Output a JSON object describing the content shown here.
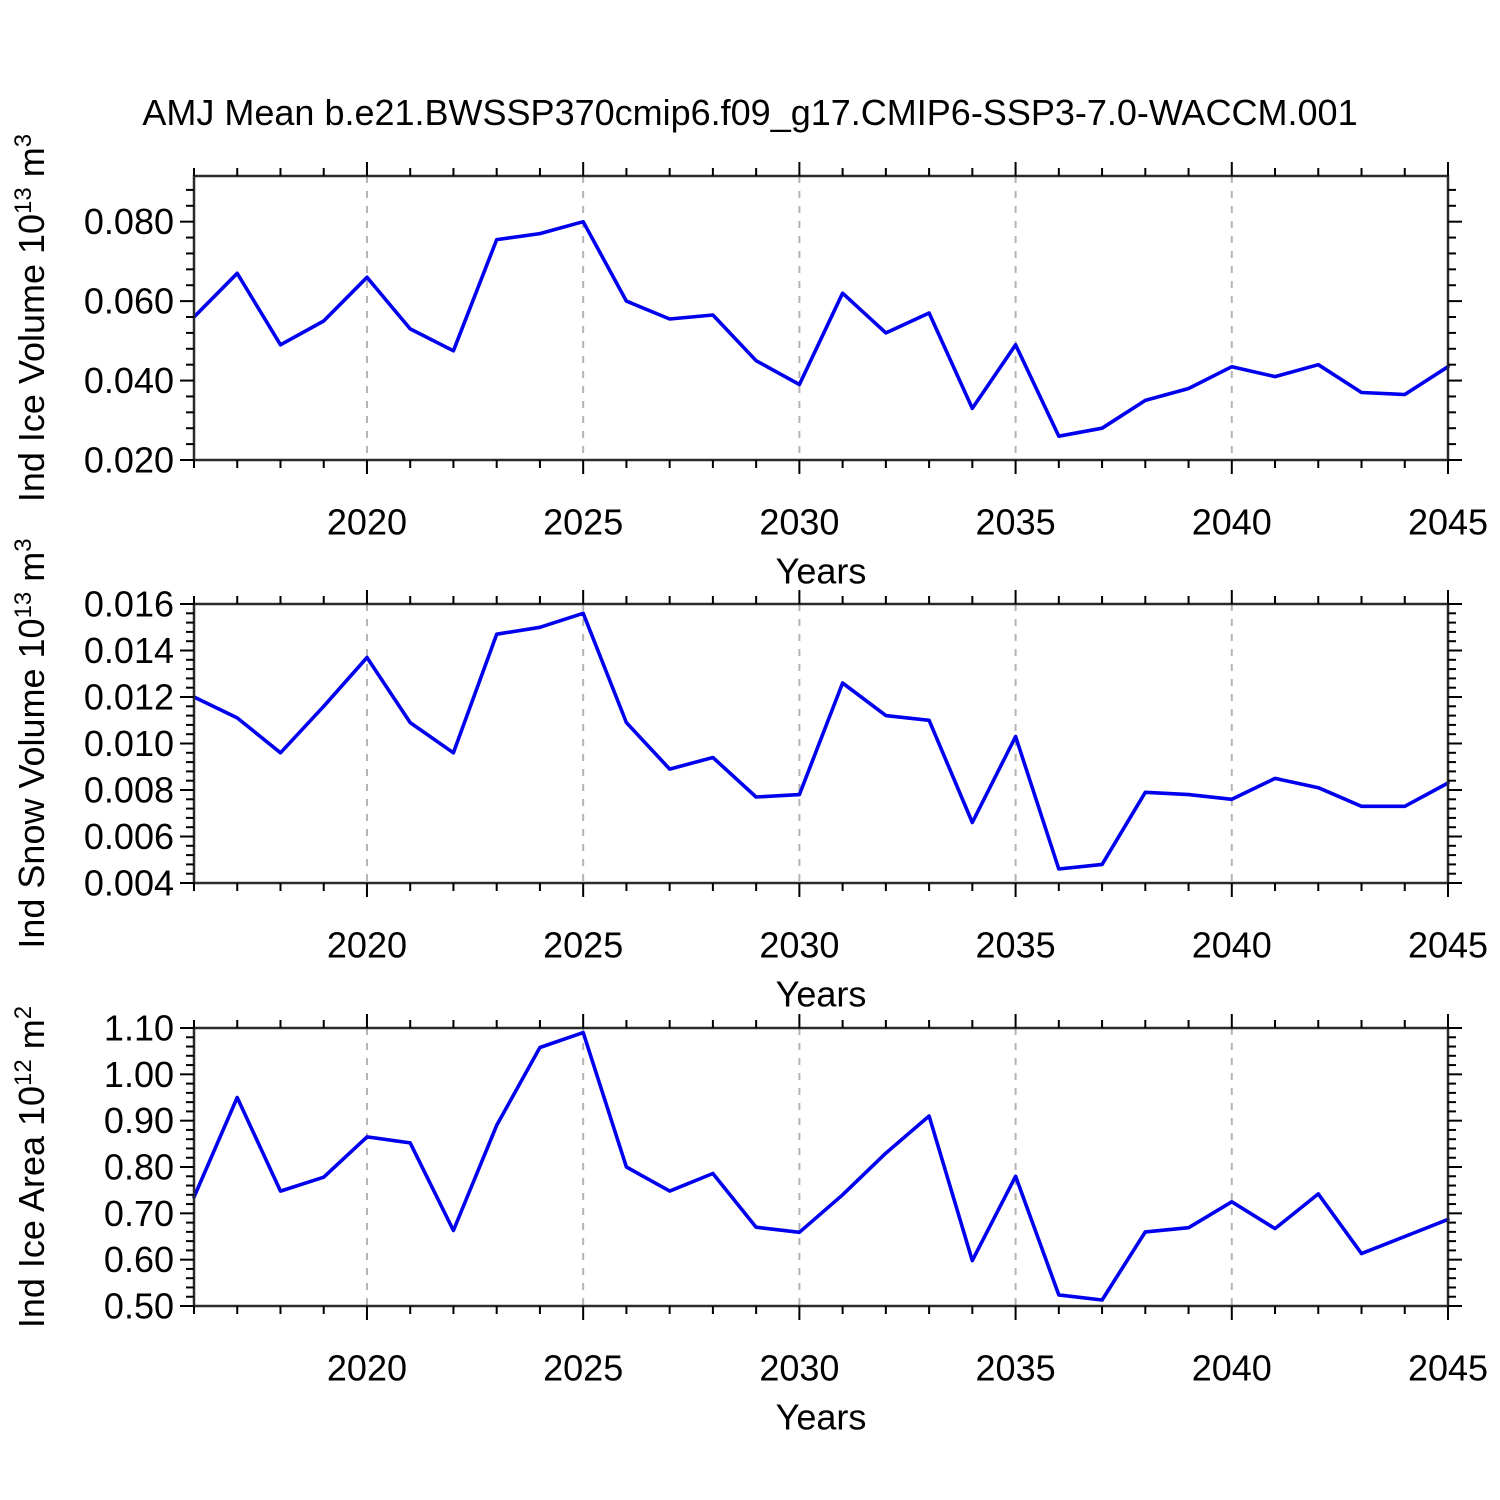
{
  "title": "AMJ Mean b.e21.BWSSP370cmip6.f09_g17.CMIP6-SSP3-7.0-WACCM.001",
  "colors": {
    "line": "#0000EE",
    "grid": "#B4B4B4",
    "axis": "#2B2B2B",
    "text": "#000000",
    "background": "#FFFFFF"
  },
  "x_axis": {
    "label": "Years",
    "years": [
      2016,
      2017,
      2018,
      2019,
      2020,
      2021,
      2022,
      2023,
      2024,
      2025,
      2026,
      2027,
      2028,
      2029,
      2030,
      2031,
      2032,
      2033,
      2034,
      2035,
      2036,
      2037,
      2038,
      2039,
      2040,
      2041,
      2042,
      2043,
      2044,
      2045
    ],
    "xlim": [
      2016,
      2045
    ],
    "major_ticks": [
      2020,
      2025,
      2030,
      2035,
      2040,
      2045
    ],
    "tick_labels": [
      "2020",
      "2025",
      "2030",
      "2035",
      "2040",
      "2045"
    ],
    "gridline_years": [
      2020,
      2025,
      2030,
      2035,
      2040
    ],
    "minor_step": 1
  },
  "chart_data": [
    {
      "type": "line",
      "name": "ind-ice-volume",
      "title": "",
      "xlabel": "Years",
      "ylabel": "Ind Ice Volume 10^13 m^3",
      "ylabel_parts": {
        "main": "Ind Ice Volume 10",
        "sup": "13",
        "unit": " m",
        "unit_sup": "3"
      },
      "ylim": [
        0.02,
        0.0915
      ],
      "ytick_values": [
        0.02,
        0.04,
        0.06,
        0.08
      ],
      "ytick_labels": [
        "0.020",
        "0.040",
        "0.060",
        "0.080"
      ],
      "y_minor_step": 0.004,
      "grid": "vertical-dashed",
      "legend": "none",
      "values": [
        0.056,
        0.067,
        0.049,
        0.055,
        0.066,
        0.053,
        0.0475,
        0.0755,
        0.077,
        0.08,
        0.06,
        0.0555,
        0.0565,
        0.045,
        0.039,
        0.062,
        0.052,
        0.057,
        0.033,
        0.049,
        0.026,
        0.028,
        0.035,
        0.038,
        0.0435,
        0.041,
        0.044,
        0.037,
        0.0365,
        0.0435
      ]
    },
    {
      "type": "line",
      "name": "ind-snow-volume",
      "title": "",
      "xlabel": "Years",
      "ylabel": "Ind Snow Volume 10^13 m^3",
      "ylabel_parts": {
        "main": "Ind Snow Volume 10",
        "sup": "13",
        "unit": " m",
        "unit_sup": "3"
      },
      "ylim": [
        0.004,
        0.016
      ],
      "ytick_values": [
        0.004,
        0.006,
        0.008,
        0.01,
        0.012,
        0.014,
        0.016
      ],
      "ytick_labels": [
        "0.004",
        "0.006",
        "0.008",
        "0.010",
        "0.012",
        "0.014",
        "0.016"
      ],
      "y_minor_step": 0.0004,
      "grid": "vertical-dashed",
      "legend": "none",
      "values": [
        0.012,
        0.0111,
        0.0096,
        0.0116,
        0.0137,
        0.0109,
        0.0096,
        0.0147,
        0.015,
        0.0156,
        0.0109,
        0.0089,
        0.0094,
        0.0077,
        0.0078,
        0.0126,
        0.0112,
        0.011,
        0.0066,
        0.0103,
        0.0046,
        0.0048,
        0.0079,
        0.0078,
        0.0076,
        0.0085,
        0.0081,
        0.0073,
        0.0073,
        0.0083
      ]
    },
    {
      "type": "line",
      "name": "ind-ice-area",
      "title": "",
      "xlabel": "Years",
      "ylabel": "Ind Ice Area 10^12 m^2",
      "ylabel_parts": {
        "main": "Ind Ice Area 10",
        "sup": "12",
        "unit": " m",
        "unit_sup": "2"
      },
      "ylim": [
        0.5,
        1.1
      ],
      "ytick_values": [
        0.5,
        0.6,
        0.7,
        0.8,
        0.9,
        1.0,
        1.1
      ],
      "ytick_labels": [
        "0.50",
        "0.60",
        "0.70",
        "0.80",
        "0.90",
        "1.00",
        "1.10"
      ],
      "y_minor_step": 0.02,
      "grid": "vertical-dashed",
      "legend": "none",
      "values": [
        0.735,
        0.95,
        0.748,
        0.778,
        0.865,
        0.852,
        0.663,
        0.89,
        1.058,
        1.09,
        0.8,
        0.748,
        0.786,
        0.67,
        0.659,
        0.74,
        0.83,
        0.91,
        0.598,
        0.78,
        0.524,
        0.513,
        0.66,
        0.669,
        0.725,
        0.667,
        0.742,
        0.613,
        0.65,
        0.687
      ]
    }
  ]
}
